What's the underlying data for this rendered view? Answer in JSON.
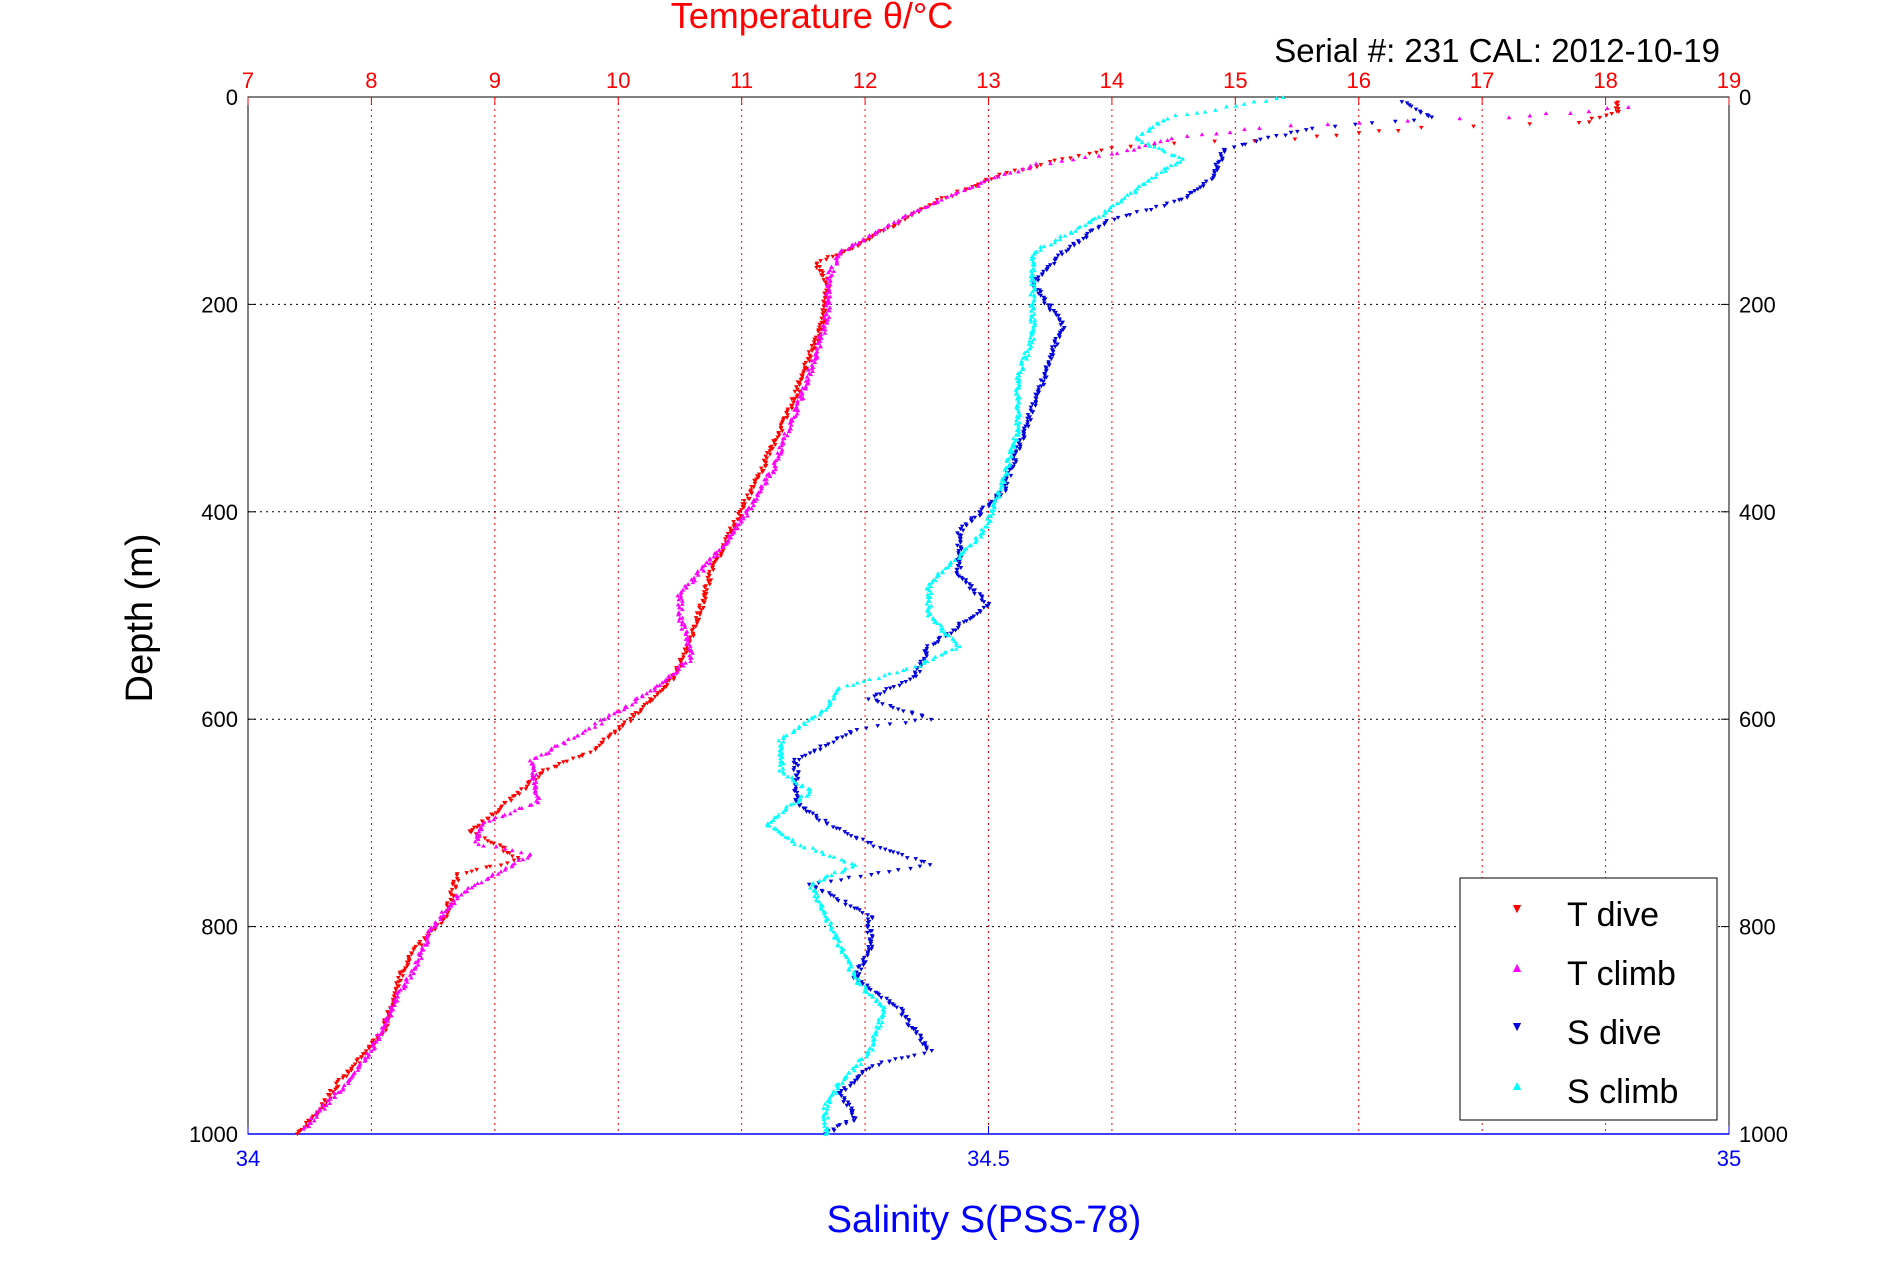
{
  "chart_data": {
    "type": "scatter",
    "top_axis_title": "Temperature θ/°C",
    "serial_text": "Serial #: 231   CAL: 2012-10-19",
    "ylabel": "Depth (m)",
    "xlabel": "Salinity S(PSS-78)",
    "top_axis": {
      "lim": [
        7,
        19
      ],
      "ticks": [
        "7",
        "8",
        "9",
        "10",
        "11",
        "12",
        "13",
        "14",
        "15",
        "16",
        "17",
        "18",
        "19"
      ]
    },
    "bottom_axis": {
      "lim": [
        34,
        35
      ],
      "ticks": [
        "34",
        "34.5",
        "35"
      ]
    },
    "y_axis": {
      "lim": [
        0,
        1000
      ],
      "reversed": true,
      "ticks": [
        "0",
        "200",
        "400",
        "600",
        "800",
        "1000"
      ]
    },
    "grid": true,
    "legend_position": "bottom-right",
    "colors": {
      "temp_axis": "#ff0000",
      "sal_axis": "#0000ff",
      "t_dive": "#ff0000",
      "t_climb": "#ff00ff",
      "s_dive": "#0000dd",
      "s_climb": "#00ffff"
    },
    "series": [
      {
        "name": "T dive",
        "axis": "temperature",
        "marker": "triangle-down",
        "points": [
          [
            18.1,
            5
          ],
          [
            18.1,
            15
          ],
          [
            17.8,
            25
          ],
          [
            16.5,
            30
          ],
          [
            15.5,
            40
          ],
          [
            14.5,
            45
          ],
          [
            14,
            50
          ],
          [
            13.6,
            60
          ],
          [
            13.1,
            75
          ],
          [
            12.6,
            100
          ],
          [
            12.3,
            120
          ],
          [
            11.9,
            145
          ],
          [
            11.6,
            160
          ],
          [
            11.7,
            180
          ],
          [
            11.65,
            220
          ],
          [
            11.55,
            250
          ],
          [
            11.4,
            300
          ],
          [
            11.2,
            350
          ],
          [
            11.0,
            400
          ],
          [
            10.9,
            420
          ],
          [
            10.75,
            460
          ],
          [
            10.7,
            480
          ],
          [
            10.6,
            520
          ],
          [
            10.45,
            560
          ],
          [
            10.1,
            600
          ],
          [
            9.8,
            630
          ],
          [
            9.4,
            650
          ],
          [
            9.2,
            670
          ],
          [
            9.0,
            690
          ],
          [
            8.8,
            710
          ],
          [
            9.0,
            720
          ],
          [
            9.2,
            735
          ],
          [
            8.7,
            750
          ],
          [
            8.6,
            790
          ],
          [
            8.3,
            830
          ],
          [
            8.2,
            860
          ],
          [
            8.1,
            900
          ],
          [
            7.9,
            930
          ],
          [
            7.7,
            955
          ],
          [
            7.6,
            975
          ],
          [
            7.4,
            1000
          ]
        ]
      },
      {
        "name": "T climb",
        "axis": "temperature",
        "marker": "triangle-up",
        "points": [
          [
            18.2,
            10
          ],
          [
            17.2,
            20
          ],
          [
            16,
            25
          ],
          [
            15.2,
            30
          ],
          [
            14.5,
            40
          ],
          [
            14,
            55
          ],
          [
            13.4,
            65
          ],
          [
            13.0,
            80
          ],
          [
            12.5,
            105
          ],
          [
            12.1,
            130
          ],
          [
            11.8,
            150
          ],
          [
            11.7,
            175
          ],
          [
            11.7,
            210
          ],
          [
            11.6,
            250
          ],
          [
            11.45,
            300
          ],
          [
            11.25,
            360
          ],
          [
            11.0,
            410
          ],
          [
            10.8,
            440
          ],
          [
            10.5,
            480
          ],
          [
            10.5,
            500
          ],
          [
            10.6,
            540
          ],
          [
            10.3,
            570
          ],
          [
            9.9,
            600
          ],
          [
            9.6,
            620
          ],
          [
            9.3,
            640
          ],
          [
            9.35,
            680
          ],
          [
            8.9,
            700
          ],
          [
            8.85,
            720
          ],
          [
            9.3,
            730
          ],
          [
            8.7,
            770
          ],
          [
            8.5,
            800
          ],
          [
            8.35,
            840
          ],
          [
            8.2,
            870
          ],
          [
            8.05,
            910
          ],
          [
            7.85,
            945
          ],
          [
            7.65,
            970
          ],
          [
            7.45,
            995
          ]
        ]
      },
      {
        "name": "S dive",
        "axis": "salinity",
        "marker": "triangle-down",
        "points": [
          [
            34.78,
            5
          ],
          [
            34.8,
            20
          ],
          [
            34.72,
            30
          ],
          [
            34.66,
            50
          ],
          [
            34.65,
            80
          ],
          [
            34.63,
            100
          ],
          [
            34.58,
            120
          ],
          [
            34.55,
            150
          ],
          [
            34.53,
            180
          ],
          [
            34.55,
            220
          ],
          [
            34.54,
            260
          ],
          [
            34.53,
            300
          ],
          [
            34.52,
            340
          ],
          [
            34.51,
            380
          ],
          [
            34.48,
            420
          ],
          [
            34.48,
            460
          ],
          [
            34.5,
            490
          ],
          [
            34.46,
            530
          ],
          [
            34.45,
            560
          ],
          [
            34.42,
            580
          ],
          [
            34.46,
            600
          ],
          [
            34.41,
            610
          ],
          [
            34.37,
            640
          ],
          [
            34.37,
            680
          ],
          [
            34.39,
            700
          ],
          [
            34.42,
            720
          ],
          [
            34.46,
            740
          ],
          [
            34.38,
            760
          ],
          [
            34.42,
            790
          ],
          [
            34.42,
            820
          ],
          [
            34.41,
            850
          ],
          [
            34.44,
            880
          ],
          [
            34.46,
            920
          ],
          [
            34.42,
            935
          ],
          [
            34.4,
            960
          ],
          [
            34.41,
            985
          ],
          [
            34.39,
            1000
          ]
        ]
      },
      {
        "name": "S climb",
        "axis": "salinity",
        "marker": "triangle-up",
        "points": [
          [
            34.7,
            0
          ],
          [
            34.62,
            20
          ],
          [
            34.6,
            40
          ],
          [
            34.63,
            60
          ],
          [
            34.6,
            90
          ],
          [
            34.57,
            120
          ],
          [
            34.53,
            150
          ],
          [
            34.53,
            190
          ],
          [
            34.53,
            230
          ],
          [
            34.52,
            270
          ],
          [
            34.52,
            320
          ],
          [
            34.51,
            370
          ],
          [
            34.5,
            410
          ],
          [
            34.49,
            430
          ],
          [
            34.46,
            470
          ],
          [
            34.46,
            500
          ],
          [
            34.48,
            530
          ],
          [
            34.45,
            550
          ],
          [
            34.4,
            570
          ],
          [
            34.39,
            590
          ],
          [
            34.36,
            620
          ],
          [
            34.36,
            650
          ],
          [
            34.38,
            670
          ],
          [
            34.35,
            700
          ],
          [
            34.37,
            720
          ],
          [
            34.41,
            740
          ],
          [
            34.38,
            760
          ],
          [
            34.39,
            790
          ],
          [
            34.4,
            820
          ],
          [
            34.41,
            850
          ],
          [
            34.43,
            880
          ],
          [
            34.42,
            920
          ],
          [
            34.4,
            950
          ],
          [
            34.39,
            975
          ],
          [
            34.39,
            1000
          ]
        ]
      }
    ]
  }
}
